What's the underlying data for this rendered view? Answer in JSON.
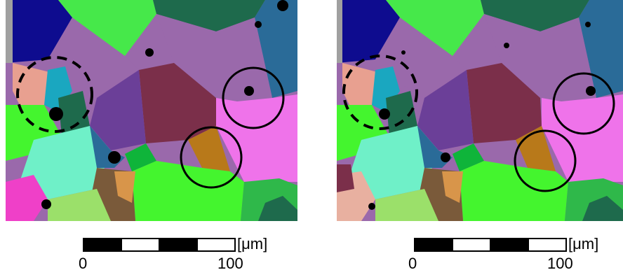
{
  "panels": [
    {
      "id": "left"
    },
    {
      "id": "right"
    }
  ],
  "scale_bar": {
    "unit": "[μm]",
    "tick_start": "0",
    "tick_end": "100"
  },
  "colors": {
    "black": "#000000",
    "navy": "#0e0c8f",
    "violet": "#9a69ab",
    "purple": "#6b3f98",
    "maroon": "#7b2f4a",
    "magenta": "#ef73ea",
    "teal_blue": "#2a6b98",
    "green": "#46e84a",
    "salmon": "#e8a090",
    "cyan": "#1aa7c0",
    "aquamarine": "#6ff0c8",
    "lime": "#44f52e",
    "olive": "#b8791a"
  }
}
